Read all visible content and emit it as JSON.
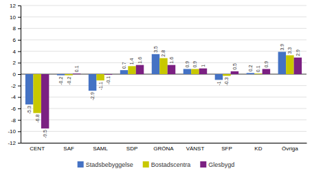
{
  "chart_data": {
    "type": "bar",
    "categories": [
      "CENT",
      "SAF",
      "SAML",
      "SDP",
      "GRÖNA",
      "VÄNST",
      "SFP",
      "KD",
      "Övriga"
    ],
    "series": [
      {
        "name": "Stadsbebyggelse",
        "color": "#4472C4",
        "values": [
          -5.3,
          -0.2,
          -2.9,
          0.7,
          3.5,
          0.9,
          -1.0,
          0.2,
          3.9
        ]
      },
      {
        "name": "Bostadscentra",
        "color": "#C8C800",
        "values": [
          -6.8,
          -0.2,
          -1.1,
          1.4,
          2.8,
          0.9,
          -0.3,
          0.1,
          3.3
        ]
      },
      {
        "name": "Glesbygd",
        "color": "#7B2082",
        "values": [
          -9.5,
          0.1,
          -0.1,
          1.6,
          1.6,
          1.0,
          0.5,
          0.9,
          2.9
        ]
      }
    ],
    "ylim": [
      -12,
      12
    ],
    "yticks": [
      -12,
      -10,
      -8,
      -6,
      -4,
      -2,
      0,
      2,
      4,
      6,
      8,
      10,
      12
    ],
    "grid": true,
    "legend": "bottom",
    "data_labels": true
  }
}
